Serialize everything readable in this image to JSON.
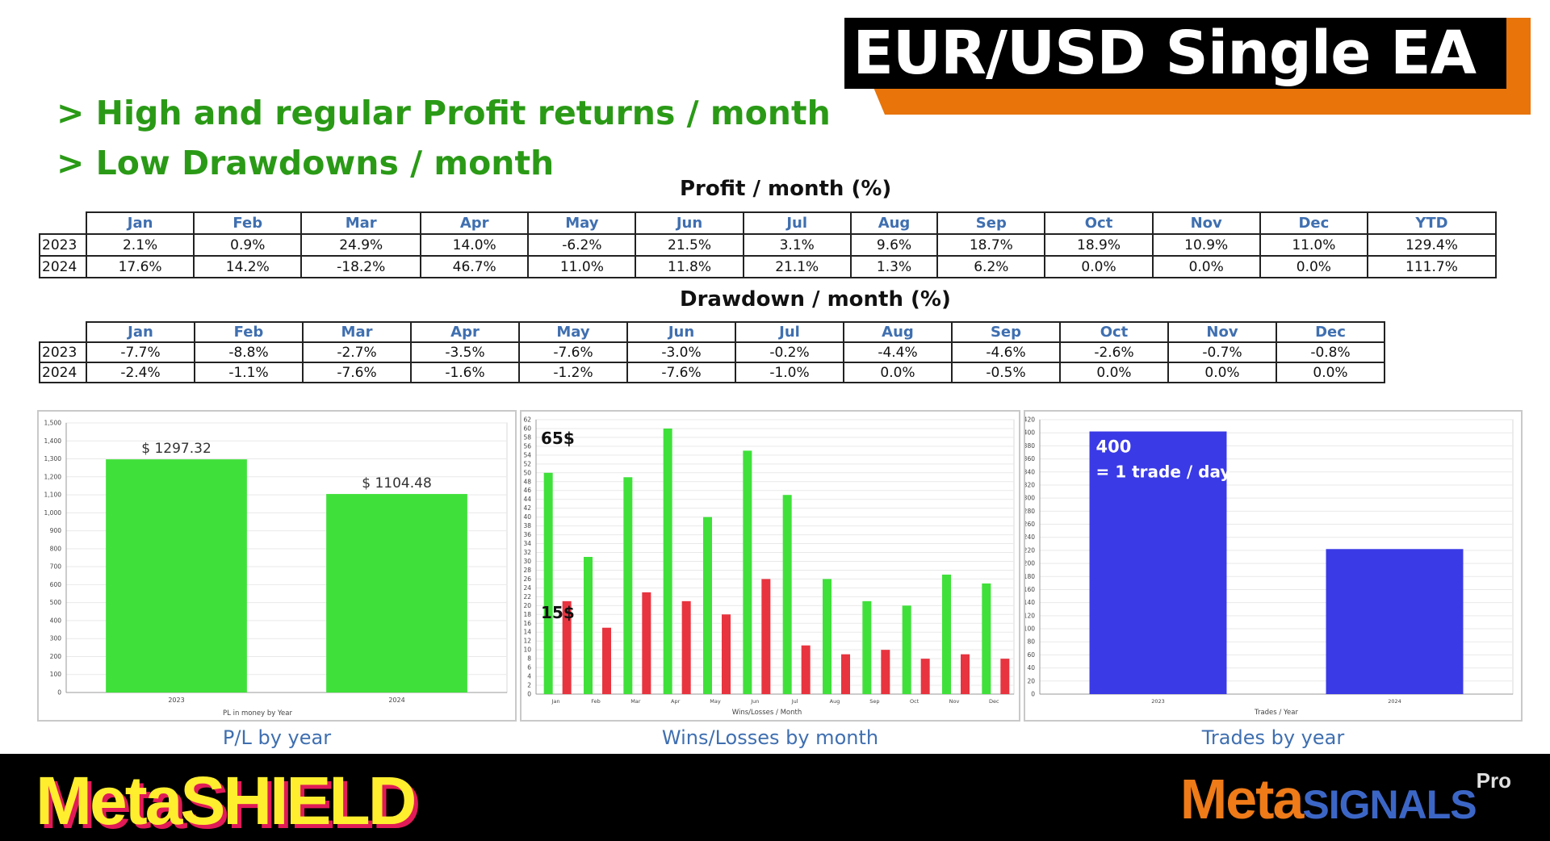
{
  "banner": {
    "title": "EUR/USD Single EA"
  },
  "bullets": [
    "> High and regular Profit returns / month",
    "> Low Drawdowns / month"
  ],
  "profit": {
    "title": "Profit / month (%)",
    "headers": [
      "Jan",
      "Feb",
      "Mar",
      "Apr",
      "May",
      "Jun",
      "Jul",
      "Aug",
      "Sep",
      "Oct",
      "Nov",
      "Dec",
      "YTD"
    ],
    "rows": [
      {
        "year": "2023",
        "values": [
          "2.1%",
          "0.9%",
          "24.9%",
          "14.0%",
          "-6.2%",
          "21.5%",
          "3.1%",
          "9.6%",
          "18.7%",
          "18.9%",
          "10.9%",
          "11.0%",
          "129.4%"
        ]
      },
      {
        "year": "2024",
        "values": [
          "17.6%",
          "14.2%",
          "-18.2%",
          "46.7%",
          "11.0%",
          "11.8%",
          "21.1%",
          "1.3%",
          "6.2%",
          "0.0%",
          "0.0%",
          "0.0%",
          "111.7%"
        ]
      }
    ]
  },
  "drawdown": {
    "title": "Drawdown / month (%)",
    "headers": [
      "Jan",
      "Feb",
      "Mar",
      "Apr",
      "May",
      "Jun",
      "Jul",
      "Aug",
      "Sep",
      "Oct",
      "Nov",
      "Dec"
    ],
    "rows": [
      {
        "year": "2023",
        "values": [
          "-7.7%",
          "-8.8%",
          "-2.7%",
          "-3.5%",
          "-7.6%",
          "-3.0%",
          "-0.2%",
          "-4.4%",
          "-4.6%",
          "-2.6%",
          "-0.7%",
          "-0.8%"
        ]
      },
      {
        "year": "2024",
        "values": [
          "-2.4%",
          "-1.1%",
          "-7.6%",
          "-1.6%",
          "-1.2%",
          "-7.6%",
          "-1.0%",
          "0.0%",
          "-0.5%",
          "0.0%",
          "0.0%",
          "0.0%"
        ]
      }
    ]
  },
  "chart_data": [
    {
      "type": "bar",
      "caption": "P/L by year",
      "xlabel": "PL in money by Year",
      "categories": [
        "2023",
        "2024"
      ],
      "values": [
        1297.32,
        1104.48
      ],
      "data_labels": [
        "$ 1297.32",
        "$ 1104.48"
      ],
      "ylim": [
        0,
        1500
      ],
      "yticks": [
        0,
        100,
        200,
        300,
        400,
        500,
        600,
        700,
        800,
        900,
        1000,
        1100,
        1200,
        1300,
        1400,
        1500
      ],
      "ytick_labels": [
        "0",
        "100",
        "200",
        "300",
        "400",
        "500",
        "600",
        "700",
        "800",
        "900",
        "1,000",
        "1,100",
        "1,200",
        "1,300",
        "1,400",
        "1,500"
      ],
      "color": "#3fe03a",
      "grid": true
    },
    {
      "type": "bar",
      "caption": "Wins/Losses by month",
      "xlabel": "Wins/Losses / Month",
      "categories": [
        "Jan",
        "Feb",
        "Mar",
        "Apr",
        "May",
        "Jun",
        "Jul",
        "Aug",
        "Sep",
        "Oct",
        "Nov",
        "Dec"
      ],
      "series": [
        {
          "values": [
            50,
            31,
            49,
            60,
            40,
            55,
            45,
            26,
            21,
            20,
            27,
            25
          ],
          "color": "#3fe03a"
        },
        {
          "values": [
            21,
            15,
            23,
            21,
            18,
            26,
            11,
            9,
            10,
            8,
            9,
            8
          ],
          "color": "#e8343f"
        }
      ],
      "annotations": [
        "65$",
        "15$"
      ],
      "ylim": [
        0,
        62
      ],
      "yticks": [
        0,
        2,
        4,
        6,
        8,
        10,
        12,
        14,
        16,
        18,
        20,
        22,
        24,
        26,
        28,
        30,
        32,
        34,
        36,
        38,
        40,
        42,
        44,
        46,
        48,
        50,
        52,
        54,
        56,
        58,
        60,
        62
      ],
      "grid": true
    },
    {
      "type": "bar",
      "caption": "Trades by year",
      "xlabel": "Trades / Year",
      "categories": [
        "2023",
        "2024"
      ],
      "values": [
        402,
        222
      ],
      "annotations": [
        "400",
        "= 1 trade / day"
      ],
      "ylim": [
        0,
        420
      ],
      "yticks": [
        0,
        20,
        40,
        60,
        80,
        100,
        120,
        140,
        160,
        180,
        200,
        220,
        240,
        260,
        280,
        300,
        320,
        340,
        360,
        380,
        400,
        420
      ],
      "color": "#3a3ae6",
      "grid": true
    }
  ],
  "footer": {
    "left_logo": "MetaSHIELD",
    "right_logo_meta": "Meta",
    "right_logo_signals": "SIGNALS",
    "right_logo_pro": "Pro"
  }
}
